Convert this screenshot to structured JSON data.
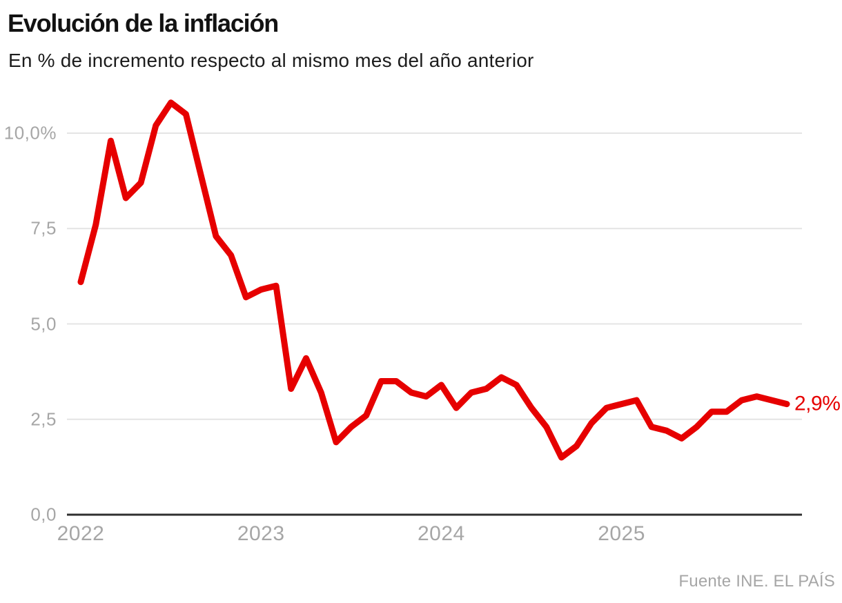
{
  "header": {
    "title": "Evolución de la inflación",
    "subtitle": "En % de incremento respecto al mismo mes del año anterior"
  },
  "footer": {
    "source": "Fuente INE. EL PAÍS"
  },
  "colors": {
    "line": "#e60000",
    "end_label": "#e60000",
    "title": "#121212",
    "subtitle": "#1c1c1c",
    "axis_text": "#a6a6a6",
    "grid": "#e4e4e4",
    "baseline": "#2f2f2f",
    "background": "#ffffff"
  },
  "chart_data": {
    "type": "line",
    "title": "Evolución de la inflación",
    "subtitle": "En % de incremento respecto al mismo mes del año anterior",
    "unit": "%",
    "x_start": "2022-01",
    "x_end": "2025-12",
    "x_frequency": "monthly",
    "x_tick_labels": [
      "2022",
      "2023",
      "2024",
      "2025"
    ],
    "y_ticks": [
      {
        "value": 0,
        "label": "0,0"
      },
      {
        "value": 2.5,
        "label": "2,5"
      },
      {
        "value": 5,
        "label": "5,0"
      },
      {
        "value": 7.5,
        "label": "7,5"
      },
      {
        "value": 10,
        "label": "10,0%"
      }
    ],
    "ylim": [
      0,
      11
    ],
    "grid": true,
    "legend": false,
    "end_label": "2,9%",
    "series": [
      {
        "name": "inflación",
        "values": [
          6.1,
          7.6,
          9.8,
          8.3,
          8.7,
          10.2,
          10.8,
          10.5,
          8.9,
          7.3,
          6.8,
          5.7,
          5.9,
          6.0,
          3.3,
          4.1,
          3.2,
          1.9,
          2.3,
          2.6,
          3.5,
          3.5,
          3.2,
          3.1,
          3.4,
          2.8,
          3.2,
          3.3,
          3.6,
          3.4,
          2.8,
          2.3,
          1.5,
          1.8,
          2.4,
          2.8,
          2.9,
          3.0,
          2.3,
          2.2,
          2.0,
          2.3,
          2.7,
          2.7,
          3.0,
          3.1,
          3.0,
          2.9
        ]
      }
    ]
  }
}
